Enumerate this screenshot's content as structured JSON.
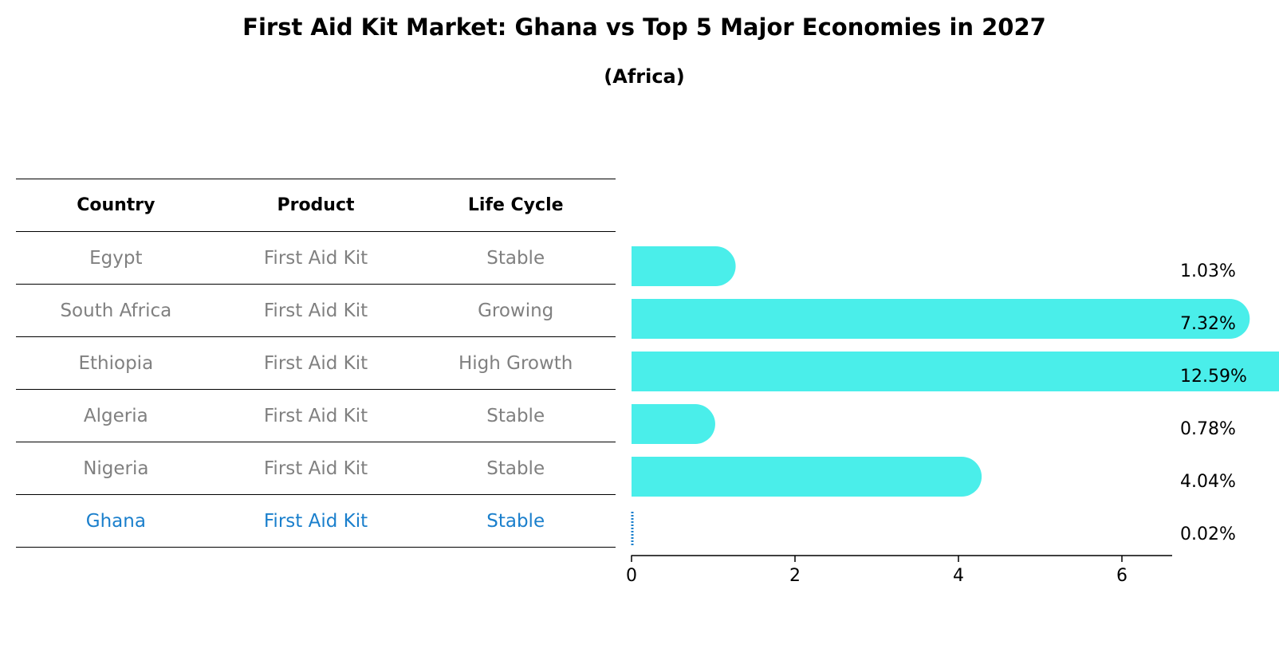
{
  "title": "First Aid Kit Market: Ghana vs Top 5 Major Economies in 2027",
  "subtitle": "(Africa)",
  "table": {
    "headers": [
      "Country",
      "Product",
      "Life Cycle"
    ],
    "rows": [
      [
        "Egypt",
        "First Aid Kit",
        "Stable"
      ],
      [
        "South Africa",
        "First Aid Kit",
        "Growing"
      ],
      [
        "Ethiopia",
        "First Aid Kit",
        "High Growth"
      ],
      [
        "Algeria",
        "First Aid Kit",
        "Stable"
      ],
      [
        "Nigeria",
        "First Aid Kit",
        "Stable"
      ],
      [
        "Ghana",
        "First Aid Kit",
        "Stable"
      ]
    ],
    "highlight_row": 5
  },
  "colors": {
    "bar": "#4aeeea",
    "highlight": "#1a7fcc",
    "muted_text": "#808080"
  },
  "chart_data": {
    "type": "bar",
    "orientation": "horizontal",
    "categories": [
      "Egypt",
      "South Africa",
      "Ethiopia",
      "Algeria",
      "Nigeria",
      "Ghana"
    ],
    "values": [
      1.03,
      7.32,
      12.59,
      0.78,
      4.04,
      0.02
    ],
    "value_labels": [
      "1.03%",
      "7.32%",
      "12.59%",
      "0.78%",
      "4.04%",
      "0.02%"
    ],
    "xlim": [
      0,
      13.2
    ],
    "xticks": [
      0,
      2,
      4,
      6,
      8,
      10,
      12
    ],
    "grid": false,
    "title": "First Aid Kit Market: Ghana vs Top 5 Major Economies in 2027",
    "subtitle": "(Africa)"
  }
}
